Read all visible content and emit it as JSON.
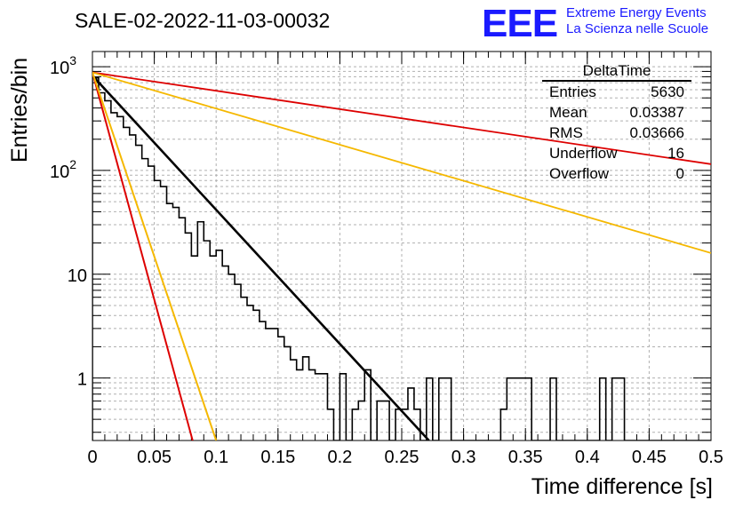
{
  "title": "SALE-02-2022-11-03-00032",
  "logo": {
    "mark": "EEE",
    "line1": "Extreme Energy Events",
    "line2": "La Scienza nelle Scuole"
  },
  "stats": {
    "title": "DeltaTime",
    "rows": [
      {
        "label": "Entries",
        "value": "5630"
      },
      {
        "label": "Mean",
        "value": "0.03387"
      },
      {
        "label": "RMS",
        "value": "0.03666"
      },
      {
        "label": "Underflow",
        "value": "16"
      },
      {
        "label": "Overflow",
        "value": "0"
      }
    ]
  },
  "colors": {
    "histogram": "#000000",
    "fit": "#000000",
    "red": "#dd0000",
    "yellow": "#f5b800",
    "grid": "#b0b0b0"
  },
  "chart_data": {
    "type": "line",
    "xlabel": "Time difference [s]",
    "ylabel": "Entries/bin",
    "xlim": [
      0,
      0.5
    ],
    "ylim": [
      0.25,
      1400
    ],
    "yscale": "log",
    "grid": true,
    "x_ticks": [
      "0",
      "0.05",
      "0.1",
      "0.15",
      "0.2",
      "0.25",
      "0.3",
      "0.35",
      "0.4",
      "0.45",
      "0.5"
    ],
    "y_ticks": [
      {
        "value": 1,
        "label": "1"
      },
      {
        "value": 10,
        "label": "10"
      },
      {
        "value": 100,
        "label": "10^2"
      },
      {
        "value": 1000,
        "label": "10^3"
      }
    ],
    "histogram": {
      "bin_width": 0.005,
      "x_start": 0,
      "values": [
        780,
        560,
        470,
        360,
        330,
        260,
        220,
        175,
        130,
        110,
        80,
        70,
        48,
        44,
        35,
        25,
        15,
        32,
        21,
        15,
        17,
        12,
        10,
        8,
        6,
        5,
        4.5,
        3.5,
        3,
        3,
        2.5,
        2,
        1.5,
        1.2,
        1.6,
        1.2,
        1.1,
        1.1,
        0.5,
        0,
        1.1,
        0,
        0.5,
        0.6,
        1.2,
        0,
        0.6,
        0.6,
        0,
        0.5,
        0.5,
        0.8,
        0.5,
        0,
        1,
        0,
        1,
        1,
        0,
        0,
        0,
        0,
        0,
        0,
        0,
        0,
        0.5,
        1,
        1,
        1,
        1,
        0,
        0,
        0,
        1,
        0,
        0,
        0,
        0,
        0,
        0,
        0,
        1,
        0,
        1,
        1,
        0,
        0,
        0,
        0,
        0,
        0,
        0,
        0,
        0,
        0,
        0,
        0,
        0,
        0
      ],
      "values_note_ignored": ""
    },
    "series": [
      {
        "values_type": "fit",
        "x": [
          0,
          0.272
        ],
        "y": [
          820,
          0.25
        ]
      },
      {
        "values_type": "red-shallow",
        "x": [
          0,
          0.5
        ],
        "y": [
          880,
          115
        ]
      },
      {
        "values_type": "yellow-shallow",
        "x": [
          0,
          0.5
        ],
        "y": [
          880,
          16
        ]
      },
      {
        "values_type": "red-steep",
        "x": [
          0,
          0.081
        ],
        "y": [
          880,
          0.25
        ]
      },
      {
        "values_type": "yellow-steep",
        "x": [
          0,
          0.1
        ],
        "y": [
          880,
          0.25
        ]
      }
    ]
  }
}
